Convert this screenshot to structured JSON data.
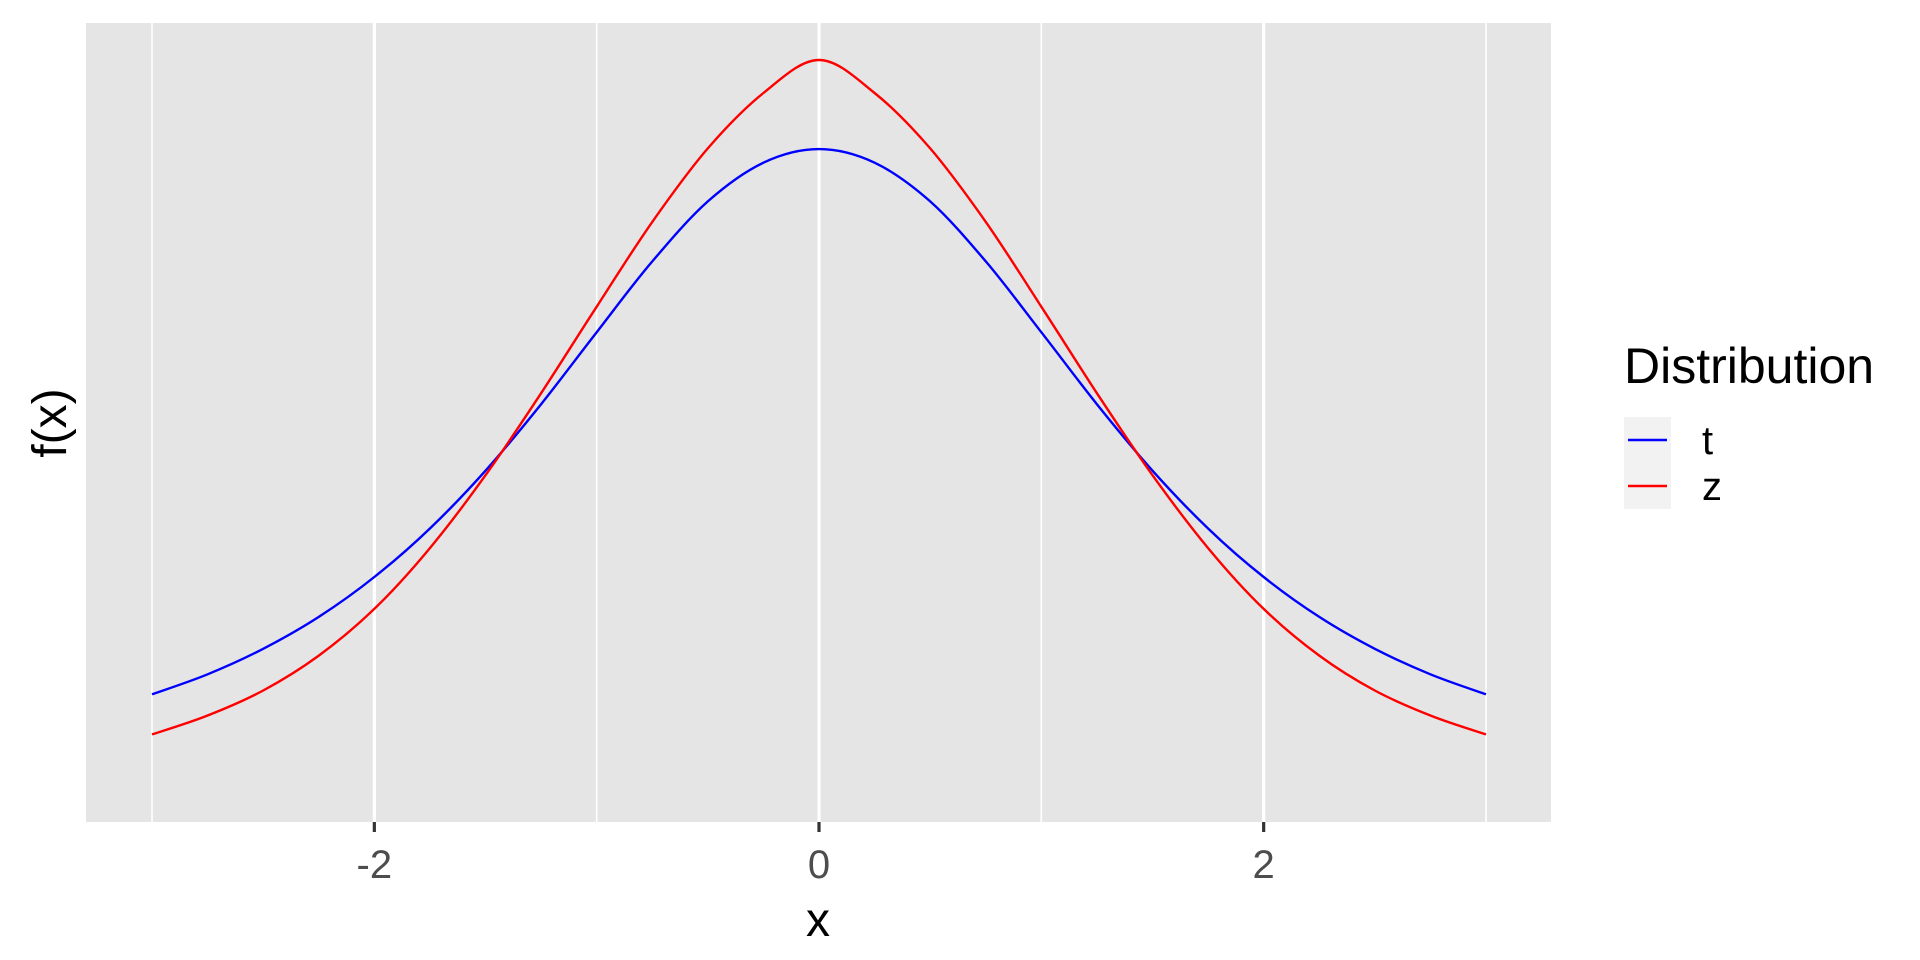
{
  "chart_data": {
    "type": "line",
    "title": "",
    "xlabel": "x",
    "ylabel": "f(x)",
    "xlim": [
      -3,
      3
    ],
    "x_ticks": [
      -2,
      0,
      2
    ],
    "x_tick_labels": [
      "-2",
      "0",
      "2"
    ],
    "y_ticks_shown": false,
    "grid": true,
    "background": "#e5e5e5",
    "grid_color": "#ffffff",
    "legend": {
      "title": "Distribution",
      "position": "right",
      "entries": [
        {
          "label": "t",
          "color": "#0000ff"
        },
        {
          "label": "z",
          "color": "#ff0000"
        }
      ]
    },
    "series": [
      {
        "name": "t",
        "color": "#0000ff",
        "x": [
          -3.0,
          -2.75,
          -2.5,
          -2.25,
          -2.0,
          -1.75,
          -1.5,
          -1.25,
          -1.0,
          -0.75,
          -0.5,
          -0.25,
          0.0,
          0.25,
          0.5,
          0.75,
          1.0,
          1.25,
          1.5,
          1.75,
          2.0,
          2.25,
          2.5,
          2.75,
          3.0
        ],
        "y": [
          0.0398,
          0.0486,
          0.0598,
          0.0738,
          0.0913,
          0.1126,
          0.138,
          0.1672,
          0.1988,
          0.2299,
          0.2562,
          0.2732,
          0.2792,
          0.2732,
          0.2562,
          0.2299,
          0.1988,
          0.1672,
          0.138,
          0.1126,
          0.0913,
          0.0738,
          0.0598,
          0.0486,
          0.0398
        ]
      },
      {
        "name": "z",
        "color": "#ff0000",
        "x": [
          -3.0,
          -2.75,
          -2.5,
          -2.25,
          -2.0,
          -1.75,
          -1.5,
          -1.25,
          -1.0,
          -0.75,
          -0.5,
          -0.25,
          0.0,
          0.25,
          0.5,
          0.75,
          1.0,
          1.25,
          1.5,
          1.75,
          2.0,
          2.25,
          2.5,
          2.75,
          3.0
        ],
        "y": [
          0.0222,
          0.0305,
          0.0415,
          0.0568,
          0.0773,
          0.104,
          0.136,
          0.172,
          0.21,
          0.2472,
          0.2795,
          0.3038,
          0.3183,
          0.3038,
          0.2795,
          0.2472,
          0.21,
          0.172,
          0.136,
          0.104,
          0.0773,
          0.0568,
          0.0415,
          0.0305,
          0.0222
        ]
      }
    ]
  }
}
